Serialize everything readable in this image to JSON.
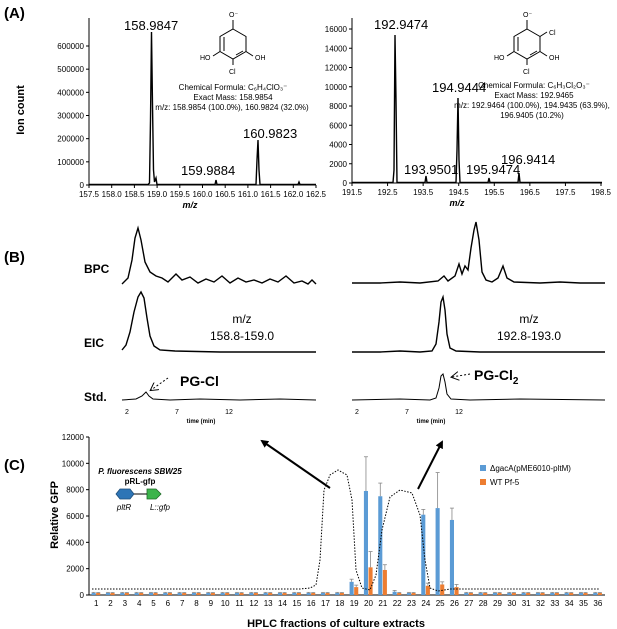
{
  "panel_a": {
    "label": "(A)",
    "left": {
      "ylabel": "Ion count",
      "xlabel": "m/z",
      "yticks": [
        "0",
        "100000",
        "200000",
        "300000",
        "400000",
        "500000",
        "600000"
      ],
      "xticks": [
        "157.5",
        "158.0",
        "158.5",
        "159.0",
        "159.5",
        "160.0",
        "160.5",
        "161.0",
        "161.5",
        "162.0",
        "162.5"
      ],
      "peak_labels": [
        "158.9847",
        "159.9884",
        "160.9823"
      ],
      "formula_line1": "Chemical Formula: C₆H₄ClO₃⁻",
      "formula_line2": "Exact Mass: 158.9854",
      "formula_line3": "m/z: 158.9854 (100.0%), 160.9824 (32.0%)",
      "structure": {
        "top": "O⁻",
        "left": "HO",
        "right": "OH",
        "bottom": "Cl"
      }
    },
    "right": {
      "xlabel": "m/z",
      "yticks": [
        "0",
        "2000",
        "4000",
        "6000",
        "8000",
        "10000",
        "12000",
        "14000",
        "16000"
      ],
      "xticks": [
        "191.5",
        "192.5",
        "193.5",
        "194.5",
        "195.5",
        "196.5",
        "197.5",
        "198.5"
      ],
      "peak_labels": [
        "192.9474",
        "193.9501",
        "194.9444",
        "195.9474",
        "196.9414"
      ],
      "formula_line1": "Chemical Formula: C₆H₃Cl₂O₃⁻",
      "formula_line2": "Exact Mass: 192.9465",
      "formula_line3": "m/z: 192.9464 (100.0%), 194.9435 (63.9%),",
      "formula_line4": "196.9405 (10.2%)",
      "structure": {
        "top": "O⁻",
        "left": "HO",
        "right": "OH",
        "cl1": "Cl",
        "cl2": "Cl"
      }
    }
  },
  "panel_b": {
    "label": "(B)",
    "rows": [
      "BPC",
      "EIC",
      "Std."
    ],
    "eic_left": {
      "line1": "m/z",
      "line2": "158.8-159.0"
    },
    "eic_right": {
      "line1": "m/z",
      "line2": "192.8-193.0"
    },
    "std_left_label": "PG-Cl",
    "std_right_label": "PG-Cl",
    "std_right_sub": "2",
    "time_ticks_left": [
      "2",
      "7",
      "12"
    ],
    "time_ticks_right": [
      "2",
      "7",
      "12"
    ],
    "time_label": "time (min)"
  },
  "panel_c": {
    "label": "(C)",
    "strain_line1": "P. fluorescens SBW25",
    "strain_line2": "pRL-gfp",
    "gene1": "pltR",
    "gene2": "L::gfp",
    "colors": {
      "series1": "#5b9bd5",
      "series2": "#ed7d31",
      "plasmid1": "#2e75b6",
      "plasmid2": "#3cb44b"
    }
  },
  "chart_data": {
    "type": "bar",
    "title": "",
    "xlabel": "HPLC fractions of culture extracts",
    "ylabel": "Relative GFP",
    "ylim": [
      0,
      12000
    ],
    "yticks": [
      0,
      2000,
      4000,
      6000,
      8000,
      10000,
      12000
    ],
    "categories": [
      "1",
      "2",
      "3",
      "4",
      "5",
      "6",
      "7",
      "8",
      "9",
      "10",
      "11",
      "12",
      "13",
      "14",
      "15",
      "16",
      "17",
      "18",
      "19",
      "20",
      "21",
      "22",
      "23",
      "24",
      "25",
      "26",
      "27",
      "28",
      "29",
      "30",
      "31",
      "32",
      "33",
      "34",
      "35",
      "36"
    ],
    "legend_position": "top-right",
    "series": [
      {
        "name": "ΔgacA(pME6010-pltM)",
        "color": "#5b9bd5",
        "values": [
          150,
          150,
          150,
          150,
          150,
          150,
          150,
          150,
          150,
          150,
          150,
          150,
          150,
          150,
          150,
          150,
          150,
          150,
          1000,
          7900,
          7500,
          250,
          150,
          6100,
          6600,
          5700,
          150,
          150,
          150,
          150,
          150,
          150,
          150,
          150,
          150,
          150
        ],
        "errors": [
          50,
          50,
          50,
          50,
          50,
          50,
          50,
          50,
          50,
          50,
          50,
          50,
          50,
          50,
          50,
          50,
          50,
          50,
          200,
          2600,
          1000,
          100,
          50,
          400,
          2700,
          900,
          50,
          50,
          50,
          50,
          50,
          50,
          50,
          50,
          50,
          50
        ]
      },
      {
        "name": "WT Pf-5",
        "color": "#ed7d31",
        "values": [
          150,
          150,
          150,
          150,
          150,
          150,
          150,
          150,
          150,
          150,
          150,
          150,
          150,
          150,
          150,
          150,
          150,
          150,
          600,
          2100,
          1900,
          150,
          150,
          700,
          800,
          600,
          150,
          150,
          150,
          150,
          150,
          150,
          150,
          150,
          150,
          150
        ],
        "errors": [
          40,
          40,
          40,
          40,
          40,
          40,
          40,
          40,
          40,
          40,
          40,
          40,
          40,
          40,
          40,
          40,
          40,
          40,
          150,
          1200,
          400,
          40,
          40,
          200,
          200,
          200,
          40,
          40,
          40,
          40,
          40,
          40,
          40,
          40,
          40,
          40
        ]
      }
    ]
  }
}
